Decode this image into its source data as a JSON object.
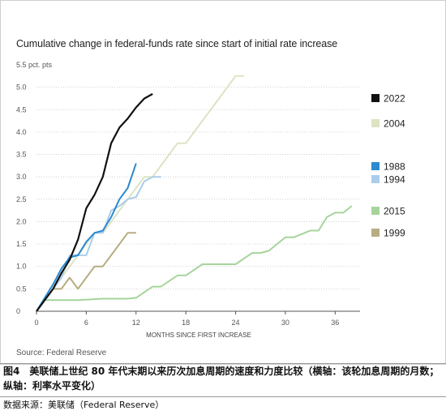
{
  "chart_data": {
    "type": "line",
    "title": "Cumulative change in federal-funds rate since start of initial rate increase",
    "xlabel": "MONTHS SINCE FIRST INCREASE",
    "ylabel": "5.5 pct. pts",
    "xlim": [
      0,
      39
    ],
    "ylim": [
      0,
      5.5
    ],
    "xticks": [
      0,
      6,
      12,
      18,
      24,
      30,
      36
    ],
    "yticks": [
      0,
      0.5,
      1.0,
      1.5,
      2.0,
      2.5,
      3.0,
      3.5,
      4.0,
      4.5,
      5.0,
      5.5
    ],
    "ytick_labels": [
      "0",
      "0.5",
      "1.0",
      "1.5",
      "2.0",
      "2.5",
      "3.0",
      "3.5",
      "4.0",
      "4.5",
      "5.0",
      "5.5 pct. pts"
    ],
    "grid": "horizontal dotted",
    "legend": "right",
    "series": [
      {
        "name": "2022",
        "color": "#111111",
        "points": [
          [
            0,
            0
          ],
          [
            1,
            0.25
          ],
          [
            2,
            0.5
          ],
          [
            3,
            0.85
          ],
          [
            4,
            1.15
          ],
          [
            5,
            1.6
          ],
          [
            6,
            2.3
          ],
          [
            7,
            2.6
          ],
          [
            8,
            3.0
          ],
          [
            9,
            3.75
          ],
          [
            10,
            4.1
          ],
          [
            11,
            4.3
          ],
          [
            12,
            4.55
          ],
          [
            13,
            4.75
          ],
          [
            14,
            4.85
          ]
        ]
      },
      {
        "name": "2004",
        "color": "#dde3c3",
        "points": [
          [
            0,
            0
          ],
          [
            1,
            0.25
          ],
          [
            2,
            0.5
          ],
          [
            3,
            0.75
          ],
          [
            4,
            1.0
          ],
          [
            5,
            1.25
          ],
          [
            6,
            1.5
          ],
          [
            7,
            1.75
          ],
          [
            8,
            1.75
          ],
          [
            9,
            2.0
          ],
          [
            10,
            2.25
          ],
          [
            11,
            2.5
          ],
          [
            12,
            2.75
          ],
          [
            13,
            3.0
          ],
          [
            14,
            3.0
          ],
          [
            15,
            3.25
          ],
          [
            16,
            3.5
          ],
          [
            17,
            3.75
          ],
          [
            18,
            3.75
          ],
          [
            19,
            4.0
          ],
          [
            20,
            4.25
          ],
          [
            21,
            4.5
          ],
          [
            22,
            4.75
          ],
          [
            23,
            5.0
          ],
          [
            24,
            5.25
          ],
          [
            25,
            5.25
          ]
        ]
      },
      {
        "name": "1988",
        "color": "#2b8ad0",
        "points": [
          [
            0,
            0
          ],
          [
            1,
            0.3
          ],
          [
            2,
            0.6
          ],
          [
            3,
            0.95
          ],
          [
            4,
            1.2
          ],
          [
            5,
            1.25
          ],
          [
            6,
            1.55
          ],
          [
            7,
            1.75
          ],
          [
            8,
            1.8
          ],
          [
            9,
            2.1
          ],
          [
            10,
            2.5
          ],
          [
            11,
            2.75
          ],
          [
            12,
            3.3
          ]
        ]
      },
      {
        "name": "1994",
        "color": "#a9cdea",
        "points": [
          [
            0,
            0
          ],
          [
            1,
            0.25
          ],
          [
            2,
            0.5
          ],
          [
            3,
            0.75
          ],
          [
            4,
            1.25
          ],
          [
            5,
            1.25
          ],
          [
            6,
            1.25
          ],
          [
            7,
            1.75
          ],
          [
            8,
            1.75
          ],
          [
            9,
            2.25
          ],
          [
            10,
            2.35
          ],
          [
            11,
            2.5
          ],
          [
            12,
            2.55
          ],
          [
            13,
            2.9
          ],
          [
            14,
            3.0
          ],
          [
            15,
            3.0
          ]
        ]
      },
      {
        "name": "2015",
        "color": "#a6d49b",
        "points": [
          [
            0,
            0
          ],
          [
            1,
            0.25
          ],
          [
            3,
            0.25
          ],
          [
            5,
            0.25
          ],
          [
            8,
            0.28
          ],
          [
            11,
            0.28
          ],
          [
            12,
            0.3
          ],
          [
            14,
            0.55
          ],
          [
            15,
            0.55
          ],
          [
            17,
            0.8
          ],
          [
            18,
            0.8
          ],
          [
            20,
            1.05
          ],
          [
            21,
            1.05
          ],
          [
            24,
            1.05
          ],
          [
            26,
            1.3
          ],
          [
            27,
            1.3
          ],
          [
            28,
            1.35
          ],
          [
            29,
            1.5
          ],
          [
            30,
            1.65
          ],
          [
            31,
            1.65
          ],
          [
            33,
            1.8
          ],
          [
            34,
            1.8
          ],
          [
            35,
            2.1
          ],
          [
            36,
            2.2
          ],
          [
            37,
            2.2
          ],
          [
            38,
            2.35
          ]
        ]
      },
      {
        "name": "1999",
        "color": "#b8ac82",
        "points": [
          [
            0,
            0
          ],
          [
            1,
            0.25
          ],
          [
            2,
            0.5
          ],
          [
            3,
            0.5
          ],
          [
            4,
            0.75
          ],
          [
            5,
            0.5
          ],
          [
            6,
            0.75
          ],
          [
            7,
            1.0
          ],
          [
            8,
            1.0
          ],
          [
            9,
            1.25
          ],
          [
            10,
            1.5
          ],
          [
            11,
            1.75
          ],
          [
            12,
            1.75
          ]
        ]
      }
    ]
  },
  "source_text": "Source: Federal Reserve",
  "caption": "图4　美联储上世纪 80 年代末期以来历次加息周期的速度和力度比较（横轴：该轮加息周期的月数；纵轴：利率水平变化）",
  "data_source": "数据来源：美联储（Federal Reserve）"
}
